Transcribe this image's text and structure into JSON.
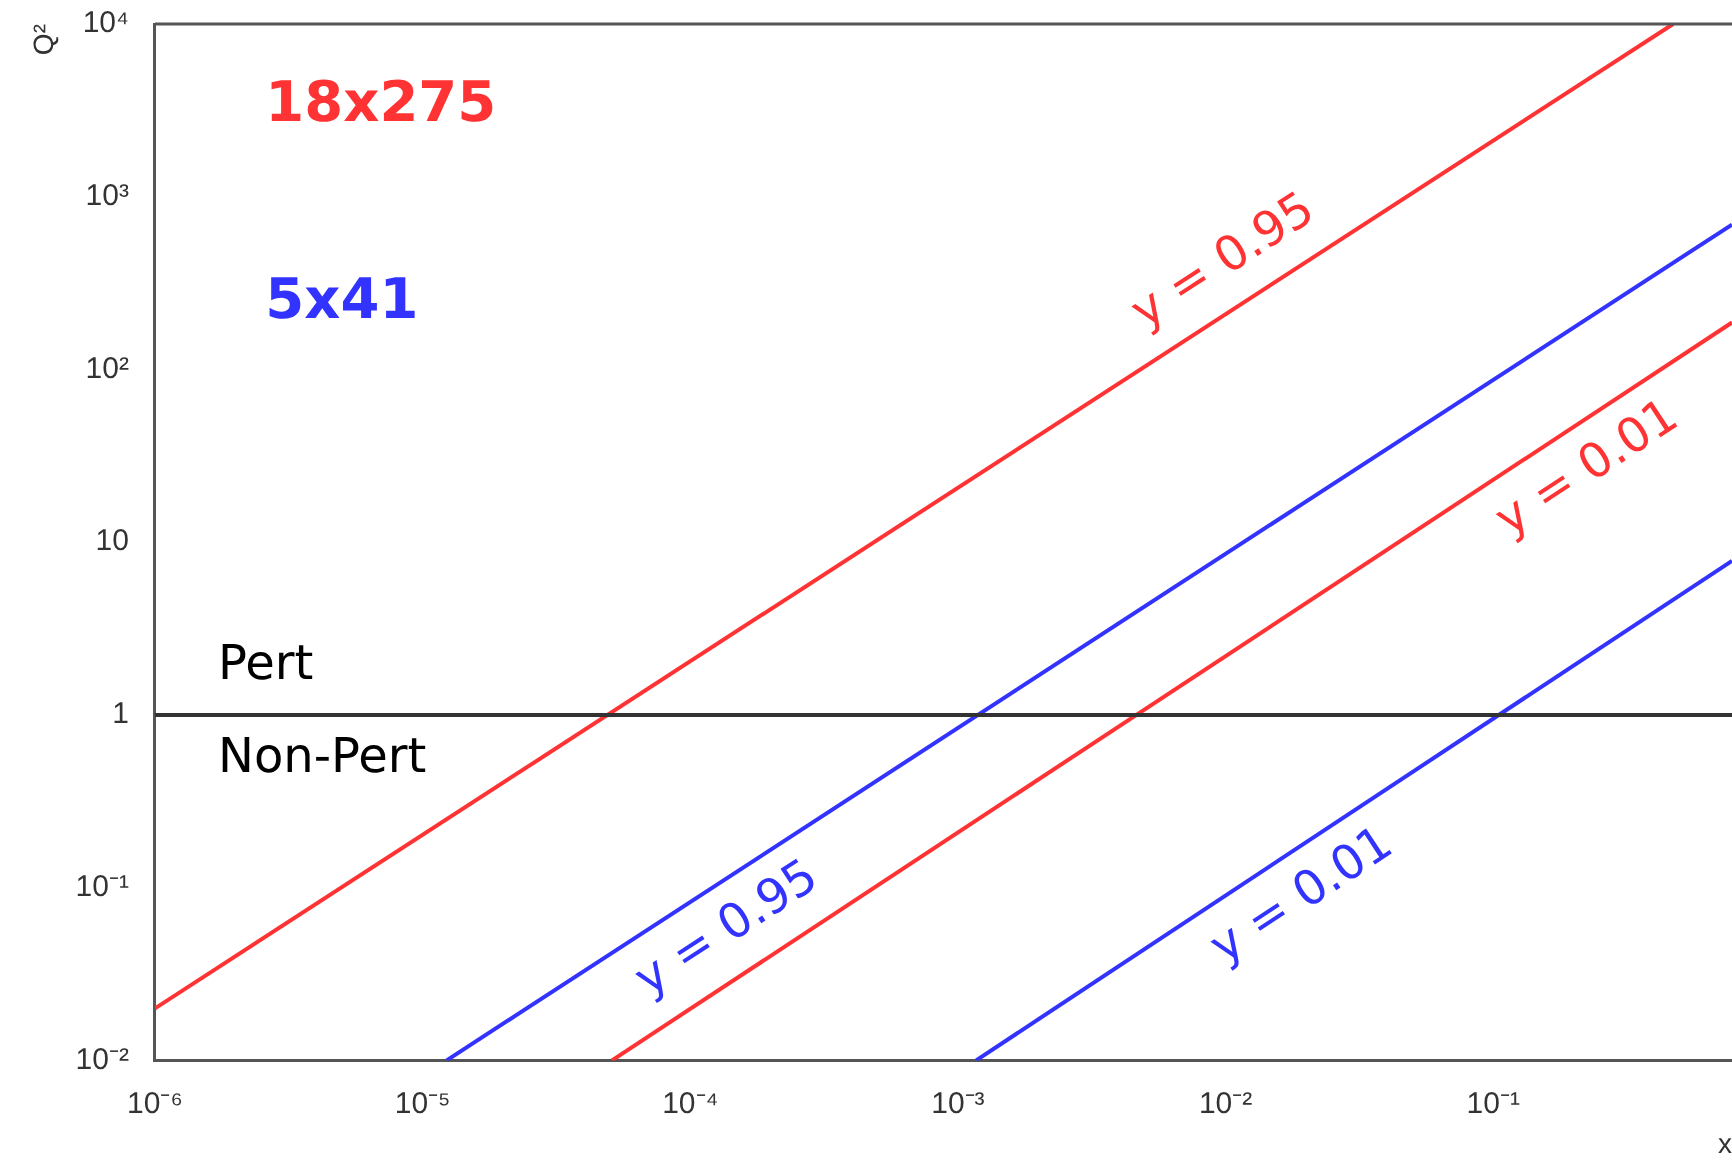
{
  "chart_data": {
    "type": "line",
    "xlabel": "x",
    "ylabel": "Q²",
    "log": "xy",
    "grid": false,
    "legend": false,
    "marker": "none",
    "line_style": "solid",
    "xlim": [
      1e-06,
      0.78
    ],
    "ylim": [
      0.01,
      10000
    ],
    "xticks": [
      {
        "value": 1e-06,
        "label": "10⁻⁶"
      },
      {
        "value": 1e-05,
        "label": "10⁻⁵"
      },
      {
        "value": 0.0001,
        "label": "10⁻⁴"
      },
      {
        "value": 0.001,
        "label": "10⁻³"
      },
      {
        "value": 0.01,
        "label": "10⁻²"
      },
      {
        "value": 0.1,
        "label": "10⁻¹"
      }
    ],
    "yticks": [
      {
        "value": 0.01,
        "label": "10⁻²"
      },
      {
        "value": 0.1,
        "label": "10⁻¹"
      },
      1,
      10,
      {
        "value": 100,
        "label": "10²"
      },
      {
        "value": 1000,
        "label": "10³"
      },
      {
        "value": 10000,
        "label": "10⁴"
      }
    ],
    "series": [
      {
        "name": "y = 0.95",
        "color": "#ff3333",
        "x": [
          1e-06,
          0.47
        ],
        "values": [
          0.02,
          10000
        ]
      },
      {
        "name": "y = 0.95",
        "color": "#3333ff",
        "x": [
          1.23e-05,
          0.78
        ],
        "values": [
          0.01,
          690
        ]
      },
      {
        "name": "y = 0.01",
        "color": "#ff3333",
        "x": [
          5.1e-05,
          0.78
        ],
        "values": [
          0.01,
          187
        ]
      },
      {
        "name": "y = 0.01",
        "color": "#3333ff",
        "x": [
          0.00117,
          0.78
        ],
        "values": [
          0.01,
          7.8
        ]
      }
    ],
    "ref_lines": [
      {
        "axis": "y",
        "value": 1,
        "color": "#333333",
        "line_style": "solid"
      }
    ],
    "annotations": [
      "18x275",
      "5x41",
      "Pert",
      "Non-Pert"
    ]
  }
}
